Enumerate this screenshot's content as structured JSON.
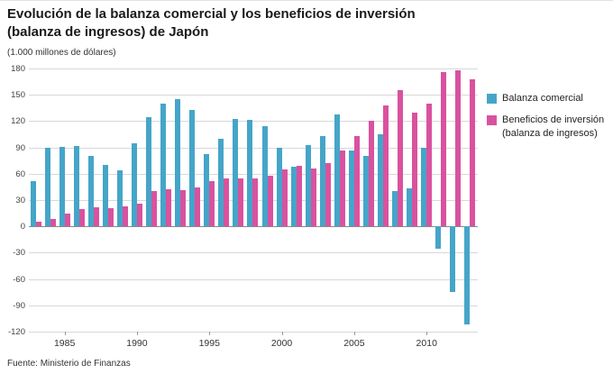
{
  "header": {
    "title_line1": "Evolución de la balanza comercial y los beneficios de inversión",
    "title_line2": "(balanza de ingresos) de Japón",
    "units": "(1.000 millones de dólares)"
  },
  "footer": {
    "source": "Fuente: Ministerio de Finanzas"
  },
  "colors": {
    "trade_blue": "#45a5c9",
    "income_pink": "#d9529f",
    "grid": "#d8d8d8",
    "zero_line": "#8a8a8a"
  },
  "chart_data": {
    "type": "bar",
    "title": "Evolución de la balanza comercial y los beneficios de inversión (balanza de ingresos) de Japón",
    "ylabel": "(1.000 millones de dólares)",
    "ylim": [
      -120,
      180
    ],
    "ytick_step": 30,
    "grid": true,
    "legend_position": "right",
    "categories": [
      1983,
      1984,
      1985,
      1986,
      1987,
      1988,
      1989,
      1990,
      1991,
      1992,
      1993,
      1994,
      1995,
      1996,
      1997,
      1998,
      1999,
      2000,
      2001,
      2002,
      2003,
      2004,
      2005,
      2006,
      2007,
      2008,
      2009,
      2010,
      2011,
      2012,
      2013
    ],
    "xtick_labels": [
      1985,
      1990,
      1995,
      2000,
      2005,
      2010
    ],
    "series": [
      {
        "name": "Balanza comercial",
        "color": "#45a5c9",
        "values": [
          52,
          90,
          91,
          92,
          80,
          70,
          64,
          95,
          125,
          140,
          145,
          133,
          82,
          100,
          122,
          121,
          114,
          90,
          68,
          93,
          103,
          128,
          87,
          80,
          105,
          40,
          43,
          90,
          -25,
          -75,
          -112
        ]
      },
      {
        "name": "Beneficios de inversión (balanza de ingresos)",
        "color": "#d9529f",
        "values": [
          5,
          8,
          15,
          20,
          22,
          21,
          23,
          26,
          40,
          42,
          41,
          44,
          52,
          55,
          55,
          55,
          58,
          65,
          69,
          66,
          72,
          86,
          103,
          120,
          138,
          155,
          130,
          140,
          176,
          178,
          168
        ]
      }
    ]
  }
}
